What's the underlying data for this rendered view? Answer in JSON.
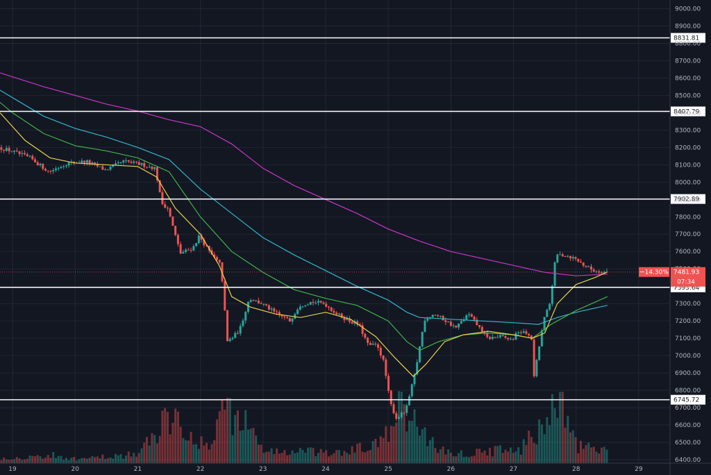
{
  "chart_data": {
    "type": "candlestick",
    "price_axis": {
      "range": [
        6380,
        9050
      ],
      "ticks": [
        "9000.00",
        "8900.00",
        "8800.00",
        "8700.00",
        "8600.00",
        "8500.00",
        "8400.00",
        "8300.00",
        "8200.00",
        "8100.00",
        "8000.00",
        "7900.00",
        "7800.00",
        "7700.00",
        "7600.00",
        "7500.00",
        "7400.00",
        "7300.00",
        "7200.00",
        "7100.00",
        "7000.00",
        "6900.00",
        "6800.00",
        "6700.00",
        "6600.00",
        "6500.00",
        "6400.00"
      ]
    },
    "time_axis": {
      "range": [
        18.8,
        29.5
      ],
      "ticks": [
        "19",
        "20",
        "21",
        "22",
        "23",
        "24",
        "25",
        "26",
        "27",
        "28",
        "29"
      ]
    },
    "grid": true,
    "horizontal_levels": [
      {
        "value": 8831.81,
        "label": "8831.81"
      },
      {
        "value": 8407.79,
        "label": "8407.79"
      },
      {
        "value": 7902.89,
        "label": "7902.89"
      },
      {
        "value": 7393.64,
        "label": "7393.64"
      },
      {
        "value": 6745.72,
        "label": "6745.72"
      }
    ],
    "current_price": {
      "value": 7481.93,
      "label": "7481.93",
      "change": "−14.30%",
      "countdown": "07:34"
    },
    "colors": {
      "up": "#26a69a",
      "down": "#ef5350",
      "ma_yellow": "#e7d34a",
      "ma_green": "#43b34a",
      "ma_cyan": "#2fb8c9",
      "ma_magenta": "#c838c8"
    },
    "price_path": [
      [
        18.8,
        8200
      ],
      [
        19.0,
        8180
      ],
      [
        19.3,
        8140
      ],
      [
        19.6,
        8060
      ],
      [
        19.9,
        8110
      ],
      [
        20.2,
        8120
      ],
      [
        20.5,
        8070
      ],
      [
        20.8,
        8120
      ],
      [
        21.1,
        8100
      ],
      [
        21.3,
        8080
      ],
      [
        21.4,
        7880
      ],
      [
        21.5,
        7850
      ],
      [
        21.7,
        7590
      ],
      [
        21.9,
        7620
      ],
      [
        22.0,
        7690
      ],
      [
        22.2,
        7580
      ],
      [
        22.35,
        7520
      ],
      [
        22.45,
        7080
      ],
      [
        22.55,
        7110
      ],
      [
        22.65,
        7150
      ],
      [
        22.8,
        7330
      ],
      [
        23.0,
        7300
      ],
      [
        23.2,
        7250
      ],
      [
        23.45,
        7200
      ],
      [
        23.6,
        7290
      ],
      [
        23.8,
        7310
      ],
      [
        24.0,
        7300
      ],
      [
        24.2,
        7240
      ],
      [
        24.4,
        7200
      ],
      [
        24.55,
        7180
      ],
      [
        24.7,
        7060
      ],
      [
        24.85,
        7060
      ],
      [
        24.95,
        6960
      ],
      [
        25.05,
        6730
      ],
      [
        25.15,
        6640
      ],
      [
        25.3,
        6680
      ],
      [
        25.45,
        6900
      ],
      [
        25.6,
        7210
      ],
      [
        25.75,
        7240
      ],
      [
        25.9,
        7210
      ],
      [
        26.1,
        7160
      ],
      [
        26.3,
        7240
      ],
      [
        26.5,
        7150
      ],
      [
        26.6,
        7100
      ],
      [
        26.8,
        7110
      ],
      [
        27.0,
        7090
      ],
      [
        27.1,
        7140
      ],
      [
        27.2,
        7130
      ],
      [
        27.3,
        7120
      ],
      [
        27.35,
        6880
      ],
      [
        27.5,
        7200
      ],
      [
        27.6,
        7300
      ],
      [
        27.7,
        7580
      ],
      [
        27.85,
        7580
      ],
      [
        28.0,
        7560
      ],
      [
        28.15,
        7520
      ],
      [
        28.3,
        7490
      ],
      [
        28.5,
        7482
      ]
    ],
    "moving_averages": [
      {
        "color_key": "ma_magenta",
        "points": [
          [
            18.8,
            8630
          ],
          [
            19.5,
            8550
          ],
          [
            20.5,
            8450
          ],
          [
            21.0,
            8410
          ],
          [
            21.5,
            8360
          ],
          [
            22.0,
            8320
          ],
          [
            22.5,
            8220
          ],
          [
            23.0,
            8080
          ],
          [
            23.5,
            7980
          ],
          [
            24.0,
            7900
          ],
          [
            24.5,
            7820
          ],
          [
            25.0,
            7730
          ],
          [
            25.5,
            7660
          ],
          [
            26.0,
            7600
          ],
          [
            26.5,
            7560
          ],
          [
            27.0,
            7520
          ],
          [
            27.5,
            7480
          ],
          [
            28.0,
            7460
          ],
          [
            28.5,
            7470
          ]
        ]
      },
      {
        "color_key": "ma_cyan",
        "points": [
          [
            18.8,
            8530
          ],
          [
            19.5,
            8380
          ],
          [
            20.0,
            8310
          ],
          [
            20.5,
            8260
          ],
          [
            21.0,
            8200
          ],
          [
            21.5,
            8130
          ],
          [
            22.0,
            7960
          ],
          [
            22.5,
            7820
          ],
          [
            23.0,
            7680
          ],
          [
            23.5,
            7580
          ],
          [
            24.0,
            7490
          ],
          [
            24.5,
            7400
          ],
          [
            25.0,
            7320
          ],
          [
            25.3,
            7250
          ],
          [
            25.5,
            7220
          ],
          [
            26.0,
            7210
          ],
          [
            26.5,
            7200
          ],
          [
            27.0,
            7190
          ],
          [
            27.4,
            7180
          ],
          [
            27.7,
            7220
          ],
          [
            28.0,
            7250
          ],
          [
            28.5,
            7290
          ]
        ]
      },
      {
        "color_key": "ma_green",
        "points": [
          [
            18.8,
            8460
          ],
          [
            19.0,
            8400
          ],
          [
            19.5,
            8280
          ],
          [
            20.0,
            8210
          ],
          [
            20.5,
            8180
          ],
          [
            21.0,
            8140
          ],
          [
            21.5,
            8060
          ],
          [
            22.0,
            7800
          ],
          [
            22.5,
            7600
          ],
          [
            23.0,
            7480
          ],
          [
            23.5,
            7380
          ],
          [
            24.0,
            7330
          ],
          [
            24.5,
            7290
          ],
          [
            25.0,
            7200
          ],
          [
            25.3,
            7080
          ],
          [
            25.5,
            7030
          ],
          [
            25.8,
            7080
          ],
          [
            26.2,
            7120
          ],
          [
            26.6,
            7130
          ],
          [
            27.0,
            7120
          ],
          [
            27.3,
            7100
          ],
          [
            27.6,
            7180
          ],
          [
            28.0,
            7260
          ],
          [
            28.5,
            7340
          ]
        ]
      },
      {
        "color_key": "ma_yellow",
        "points": [
          [
            18.8,
            8400
          ],
          [
            19.2,
            8240
          ],
          [
            19.6,
            8140
          ],
          [
            20.0,
            8110
          ],
          [
            20.5,
            8100
          ],
          [
            21.0,
            8090
          ],
          [
            21.3,
            8030
          ],
          [
            21.6,
            7850
          ],
          [
            22.0,
            7700
          ],
          [
            22.3,
            7520
          ],
          [
            22.5,
            7340
          ],
          [
            22.8,
            7280
          ],
          [
            23.2,
            7240
          ],
          [
            23.6,
            7220
          ],
          [
            24.0,
            7250
          ],
          [
            24.4,
            7210
          ],
          [
            24.8,
            7110
          ],
          [
            25.1,
            6990
          ],
          [
            25.4,
            6880
          ],
          [
            25.6,
            6950
          ],
          [
            25.9,
            7080
          ],
          [
            26.2,
            7120
          ],
          [
            26.6,
            7140
          ],
          [
            27.0,
            7120
          ],
          [
            27.3,
            7100
          ],
          [
            27.5,
            7130
          ],
          [
            27.7,
            7300
          ],
          [
            28.0,
            7410
          ],
          [
            28.3,
            7450
          ],
          [
            28.5,
            7482
          ]
        ]
      }
    ],
    "volume_profile": [
      [
        19.0,
        0.04
      ],
      [
        19.3,
        0.05
      ],
      [
        19.6,
        0.06
      ],
      [
        20.0,
        0.03
      ],
      [
        20.3,
        0.04
      ],
      [
        20.7,
        0.06
      ],
      [
        21.0,
        0.07
      ],
      [
        21.3,
        0.25
      ],
      [
        21.6,
        0.45
      ],
      [
        21.9,
        0.12
      ],
      [
        22.2,
        0.18
      ],
      [
        22.4,
        0.55
      ],
      [
        22.5,
        0.35
      ],
      [
        22.7,
        0.3
      ],
      [
        23.0,
        0.1
      ],
      [
        23.3,
        0.08
      ],
      [
        23.6,
        0.09
      ],
      [
        24.0,
        0.07
      ],
      [
        24.3,
        0.08
      ],
      [
        24.6,
        0.12
      ],
      [
        24.9,
        0.15
      ],
      [
        25.1,
        0.4
      ],
      [
        25.3,
        0.35
      ],
      [
        25.5,
        0.25
      ],
      [
        25.8,
        0.1
      ],
      [
        26.1,
        0.07
      ],
      [
        26.4,
        0.08
      ],
      [
        26.7,
        0.1
      ],
      [
        27.0,
        0.08
      ],
      [
        27.3,
        0.2
      ],
      [
        27.5,
        0.35
      ],
      [
        27.7,
        0.45
      ],
      [
        28.0,
        0.12
      ],
      [
        28.3,
        0.1
      ],
      [
        28.5,
        0.08
      ]
    ]
  }
}
